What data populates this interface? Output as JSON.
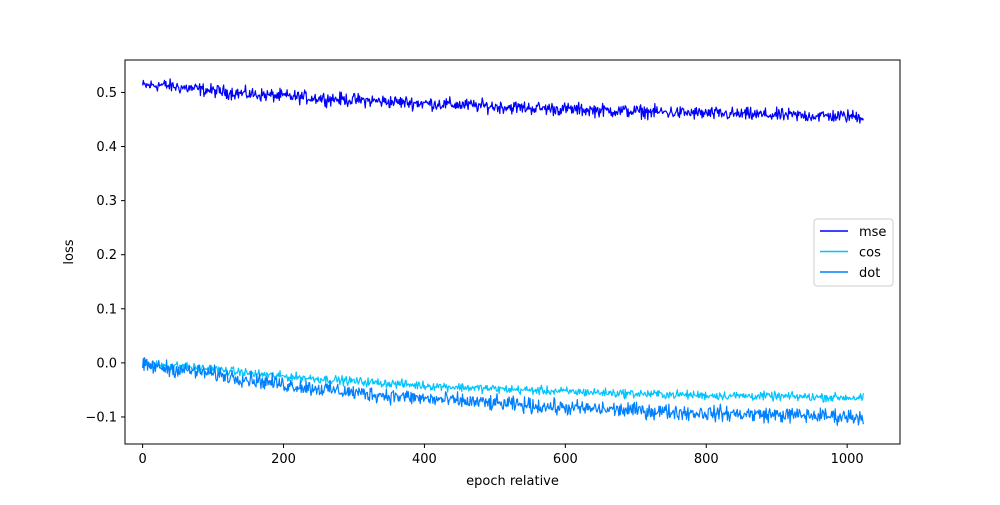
{
  "chart_data": {
    "type": "line",
    "title": "",
    "xlabel": "epoch relative",
    "ylabel": "loss",
    "xlim": [
      -25,
      1075
    ],
    "ylim": [
      -0.15,
      0.56
    ],
    "xticks": [
      0,
      200,
      400,
      600,
      800,
      1000
    ],
    "xtick_labels": [
      "0",
      "200",
      "400",
      "600",
      "800",
      "1000"
    ],
    "yticks": [
      -0.1,
      0.0,
      0.1,
      0.2,
      0.3,
      0.4,
      0.5
    ],
    "ytick_labels": [
      "−0.1",
      "0.0",
      "0.1",
      "0.2",
      "0.3",
      "0.4",
      "0.5"
    ],
    "grid": false,
    "legend_position": "center-right",
    "x_range": [
      0,
      1023
    ],
    "series": [
      {
        "name": "mse",
        "color": "#0000ff",
        "x": [
          0,
          25,
          50,
          100,
          150,
          200,
          300,
          400,
          500,
          600,
          700,
          800,
          900,
          1000,
          1023
        ],
        "y": [
          0.512,
          0.514,
          0.51,
          0.503,
          0.497,
          0.493,
          0.486,
          0.48,
          0.474,
          0.469,
          0.465,
          0.461,
          0.458,
          0.456,
          0.455
        ],
        "noise_amplitude": 0.006
      },
      {
        "name": "cos",
        "color": "#00c5ff",
        "x": [
          0,
          50,
          100,
          150,
          200,
          300,
          400,
          500,
          600,
          700,
          800,
          900,
          1000,
          1023
        ],
        "y": [
          -0.002,
          -0.006,
          -0.012,
          -0.019,
          -0.025,
          -0.034,
          -0.042,
          -0.048,
          -0.053,
          -0.057,
          -0.06,
          -0.062,
          -0.064,
          -0.065
        ],
        "noise_amplitude": 0.004
      },
      {
        "name": "dot",
        "color": "#0080ff",
        "x": [
          0,
          50,
          100,
          150,
          200,
          300,
          400,
          500,
          600,
          700,
          800,
          900,
          1000,
          1023
        ],
        "y": [
          -0.005,
          -0.012,
          -0.02,
          -0.03,
          -0.04,
          -0.055,
          -0.066,
          -0.075,
          -0.083,
          -0.088,
          -0.093,
          -0.096,
          -0.099,
          -0.1
        ],
        "noise_amplitude": 0.007
      }
    ]
  }
}
